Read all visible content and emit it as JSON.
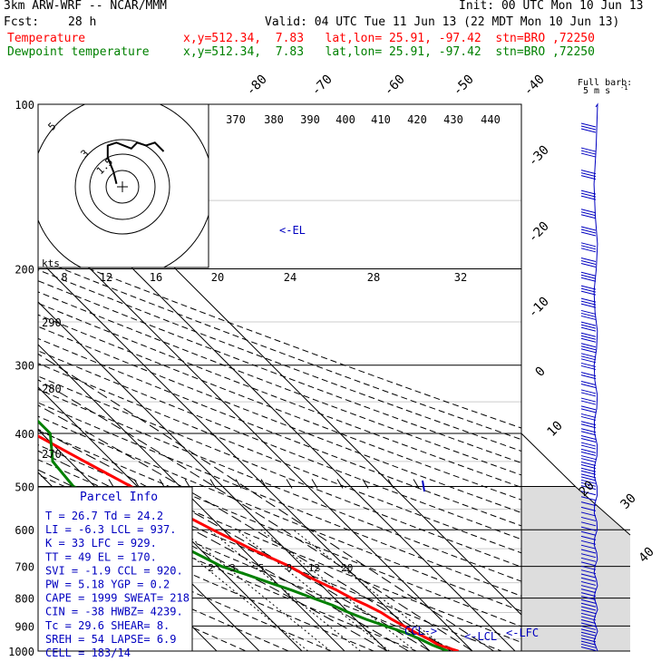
{
  "header": {
    "model": "3km ARW-WRF -- NCAR/MMM",
    "init": "Init: 00 UTC Mon 10 Jun 13",
    "fcst_label": "Fcst:",
    "fcst_value": "28 h",
    "valid": "Valid: 04 UTC Tue 11 Jun 13 (22 MDT Mon 10 Jun 13)",
    "temp_label": "Temperature",
    "dew_label": "Dewpoint temperature",
    "temp_loc": "x,y=512.34,  7.83   lat,lon= 25.91, -97.42  stn=BRO ,72250",
    "dew_loc": "x,y=512.34,  7.83   lat,lon= 25.91, -97.42  stn=BRO ,72250"
  },
  "colors": {
    "temperature": "#ff0000",
    "dewpoint": "#008000",
    "barbs": "#0000c0",
    "text": "#000000"
  },
  "barb_legend": {
    "title": "Full barb:",
    "value": "5 m s",
    "unit_exp": "-1"
  },
  "chart_data": {
    "type": "line",
    "axis": "skew-T log-p",
    "pressure_levels": [
      100,
      200,
      300,
      400,
      500,
      600,
      700,
      800,
      900,
      1000
    ],
    "isotherm_labels": [
      -80,
      -70,
      -60,
      -50,
      -40,
      -30,
      -20,
      -10,
      0,
      10,
      20,
      30,
      40
    ],
    "theta_labels": [
      370,
      380,
      390,
      400,
      410,
      420,
      430,
      440
    ],
    "theta_labels_left": [
      290,
      280,
      270
    ],
    "hodo_speed_labels": [
      8,
      12,
      16,
      20,
      24,
      28,
      32
    ],
    "hodo_speed_unit": "kts",
    "hodo_ring_labels": [
      "5",
      "3",
      "1.5"
    ],
    "mixing_ratio_labels": [
      2,
      3,
      5,
      8,
      12,
      20
    ],
    "el_label": "<-EL",
    "level_marks": [
      "CCL->",
      "<-LCL",
      "<-LFC"
    ],
    "series": [
      {
        "name": "Temperature",
        "p": [
          1000,
          975,
          950,
          925,
          900,
          875,
          850,
          825,
          800,
          775,
          750,
          725,
          700,
          650,
          600,
          550,
          500,
          450,
          400,
          350,
          300,
          250,
          200,
          175,
          150,
          125,
          100
        ],
        "t": [
          26.7,
          23.5,
          22.5,
          21.0,
          19.8,
          18.5,
          17.6,
          16.0,
          14.0,
          12.5,
          10.5,
          8.5,
          7.0,
          2.0,
          -2.5,
          -7.0,
          -11.5,
          -16.5,
          -22.0,
          -28.5,
          -36.0,
          -45.0,
          -55.0,
          -61.5,
          -68.0,
          -70.0,
          -68.0
        ]
      },
      {
        "name": "Dewpoint temperature",
        "p": [
          1000,
          975,
          950,
          925,
          900,
          875,
          850,
          825,
          800,
          775,
          750,
          725,
          700,
          650,
          600,
          550,
          500,
          450,
          400,
          350,
          300,
          250,
          200,
          175,
          150,
          125,
          100
        ],
        "t": [
          24.2,
          22.0,
          20.5,
          18.5,
          15.5,
          12.5,
          10.0,
          8.0,
          5.0,
          2.0,
          -1.5,
          -5.0,
          -9.0,
          -13.0,
          -16.0,
          -17.0,
          -25.0,
          -24.0,
          -18.0,
          -18.0,
          -32.0,
          -47.0,
          -64.0,
          -75.0,
          -87.0,
          -90.0,
          -85.0
        ]
      }
    ],
    "hodograph": {
      "x": [
        -1.0,
        -1.5,
        -2.5,
        -2.5,
        -1.0,
        1.5,
        2.5,
        4.0,
        5.5,
        7.0
      ],
      "y": [
        0.5,
        2.5,
        5.0,
        7.0,
        7.5,
        6.5,
        7.5,
        7.0,
        7.5,
        6.0
      ]
    }
  },
  "parcel": {
    "title": "Parcel Info",
    "rows": [
      "T  =    26.7  Td =  24.2",
      "LI =    -6.3  LCL =  937.",
      "K  =      33  LFC =  929.",
      "TT =      49  EL  =  170.",
      "SVI =   -1.9  CCL =  920.",
      "PW =    5.18  YGP =   0.2",
      "CAPE =  1999  SWEAT=  218",
      "CIN =    -38  HWBZ= 4239.",
      "Tc =    29.6  SHEAR=   8.",
      "SREH =    54  LAPSE=  6.9",
      "CELL = 183/14"
    ]
  }
}
